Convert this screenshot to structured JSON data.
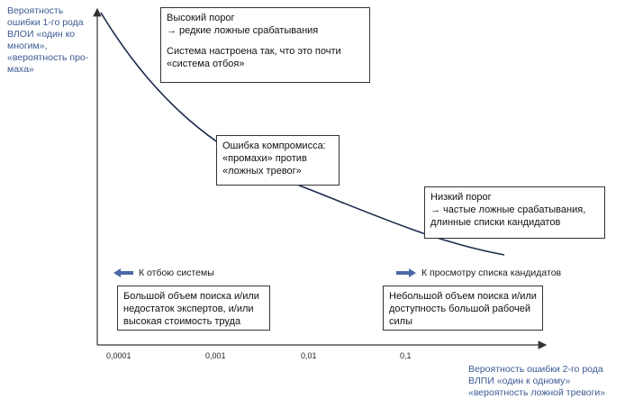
{
  "y_axis": {
    "lines": [
      "Вероятность",
      "ошибки 1-го рода",
      "ВЛОИ «один ко",
      "многим»,",
      "«вероятность про-",
      "маха»"
    ]
  },
  "x_axis": {
    "lines": [
      "Вероятность ошибки 2-го рода",
      "ВЛПИ «один к одному»",
      "«вероятность ложной тревоги»"
    ],
    "ticks": [
      "0,0001",
      "0,001",
      "0,01",
      "0,1"
    ]
  },
  "boxes": {
    "high_threshold": {
      "line1": "Высокий порог",
      "line2": "→ редкие ложные срабатывания",
      "line3": "Система настроена так, что это почти",
      "line4": "«система отбоя»"
    },
    "compromise": {
      "line1": "Ошибка компромисса:",
      "line2": "«промахи» против",
      "line3": "«ложных тревог»"
    },
    "low_threshold": {
      "line1": "Низкий порог",
      "line2": "→ частые ложные срабатывания,",
      "line3": "длинные списки кандидатов"
    },
    "left_conditions": {
      "line1": "Большой объем поиска и/или",
      "line2": "недостаток экспертов, и/или",
      "line3": "высокая стоимость труда"
    },
    "right_conditions": {
      "line1": "Небольшой объем поиска и/или",
      "line2": "доступность большой рабочей",
      "line3": "силы"
    }
  },
  "directions": {
    "left": "К отбою системы",
    "right": "К просмотру списка кандидатов"
  },
  "colors": {
    "axis_label": "#3b5a93",
    "arrow": "#4a6aa5",
    "curve": "#1a2a4a"
  }
}
